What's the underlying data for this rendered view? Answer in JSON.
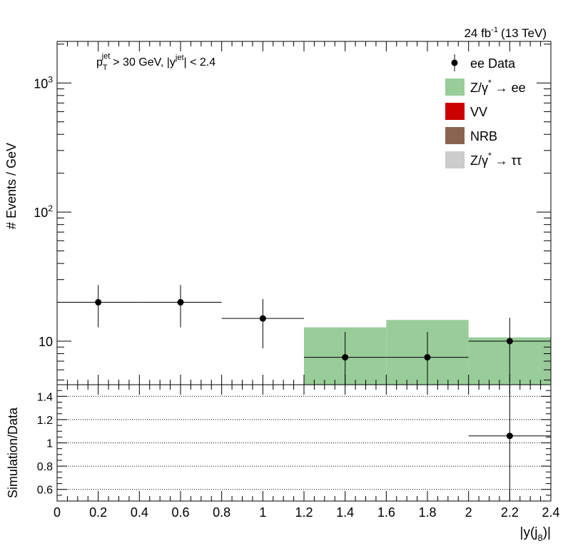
{
  "chart_data": [
    {
      "type": "bar",
      "panel": "main",
      "header": {
        "lumi_value": "24 fb",
        "lumi_exponent": "-1",
        "energy": "(13 TeV)"
      },
      "cut_label": {
        "p": "p",
        "p_sub": "T",
        "p_sup": "jet",
        "p_rest": "> 30 GeV,  |y",
        "y_sup": "jet",
        "y_rest": "| < 2.4"
      },
      "ylabel": "# Events / GeV",
      "yscale": "log",
      "ylim": [
        4.6,
        2100
      ],
      "xlim": [
        0,
        2.4
      ],
      "y_ticks": [
        {
          "value": 10,
          "base": "10",
          "exp": ""
        },
        {
          "value": 100,
          "base": "10",
          "exp": "2"
        },
        {
          "value": 1000,
          "base": "10",
          "exp": "3"
        }
      ],
      "bin_edges": [
        0,
        0.4,
        0.8,
        1.2,
        1.6,
        2.0,
        2.4
      ],
      "series": [
        {
          "name": "Z/γ* → ee",
          "kind": "stacked-fill",
          "color": "#99cc99",
          "values": [
            0,
            0,
            0,
            12.8,
            14.6,
            10.7
          ]
        },
        {
          "name": "ee Data",
          "kind": "points",
          "color": "#000000",
          "x": [
            0.2,
            0.6,
            1.0,
            1.4,
            1.8,
            2.2
          ],
          "y": [
            20,
            20,
            15,
            7.5,
            7.5,
            10
          ],
          "xerr": [
            0.2,
            0.2,
            0.2,
            0.2,
            0.2,
            0.2
          ],
          "yerr_low": [
            7.2,
            7.2,
            6.2,
            3.5,
            3.5,
            5.2
          ],
          "yerr_high": [
            7.2,
            7.2,
            6.2,
            4.3,
            4.3,
            5.2
          ]
        }
      ],
      "legend": {
        "position": "top-right",
        "entries": [
          {
            "label": "ee Data",
            "kind": "marker",
            "color": "#000000"
          },
          {
            "label": "Z/γ",
            "sup": "*",
            "suffix": " → ee",
            "kind": "box",
            "color": "#99cc99"
          },
          {
            "label": "VV",
            "sup": "",
            "suffix": "",
            "kind": "box",
            "color": "#cc0000"
          },
          {
            "label": "NRB",
            "sup": "",
            "suffix": "",
            "kind": "box",
            "color": "#8b6450"
          },
          {
            "label": "Z/γ",
            "sup": "*",
            "suffix": " → ττ",
            "kind": "box",
            "color": "#cccccc"
          }
        ]
      }
    },
    {
      "type": "scatter",
      "panel": "ratio",
      "ylabel": "Simulation/Data",
      "xlabel": {
        "main": "|y(j",
        "sub": "8",
        "end": ")|"
      },
      "ylim": [
        0.5,
        1.5
      ],
      "xlim": [
        0,
        2.4
      ],
      "y_tick_labels": [
        "0.6",
        "0.8",
        "1",
        "1.2",
        "1.4"
      ],
      "y_tick_values": [
        0.6,
        0.8,
        1.0,
        1.2,
        1.4
      ],
      "x_tick_labels": [
        "0",
        "0.2",
        "0.4",
        "0.6",
        "0.8",
        "1",
        "1.2",
        "1.4",
        "1.6",
        "1.8",
        "2",
        "2.2",
        "2.4"
      ],
      "x_tick_values": [
        0,
        0.2,
        0.4,
        0.6,
        0.8,
        1.0,
        1.2,
        1.4,
        1.6,
        1.8,
        2.0,
        2.2,
        2.4
      ],
      "grid_y": [
        0.6,
        0.8,
        1.0,
        1.2,
        1.4
      ],
      "points": [
        {
          "x": 2.2,
          "y": 1.06,
          "xerr": 0.2,
          "yerr": 0.6
        }
      ]
    }
  ]
}
